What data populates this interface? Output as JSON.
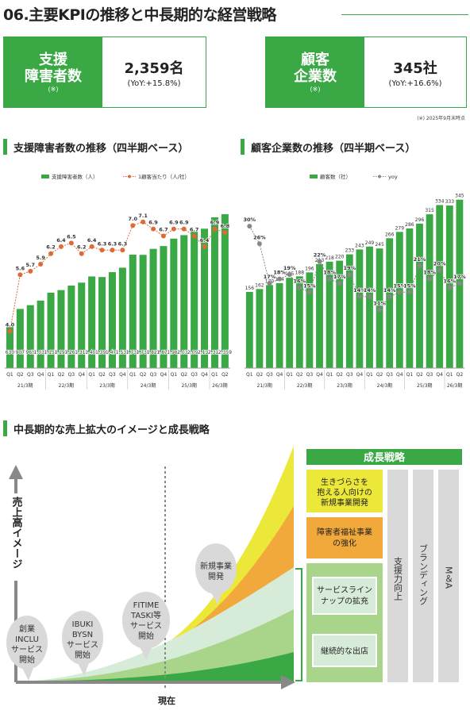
{
  "page_title": "06.主要KPIの推移と中長期的な経営戦略",
  "kpi": [
    {
      "label_line1": "支援",
      "label_line2": "障害者数",
      "note": "(※)",
      "value": "2,359名",
      "yoy": "(YoY:+15.8%)"
    },
    {
      "label_line1": "顧客",
      "label_line2": "企業数",
      "note": "(※)",
      "value": "345社",
      "yoy": "(YoY:+16.6%)"
    }
  ],
  "footnote": "(※) 2025年9月末時点",
  "section_left": "支援障害者数の推移（四半期ベース）",
  "section_right": "顧客企業数の推移（四半期ベース）",
  "section_bottom": "中長期的な売上拡大のイメージと成長戦略",
  "chart_data": [
    {
      "type": "bar",
      "categories": [
        "Q1",
        "Q2",
        "Q3",
        "Q4",
        "Q1",
        "Q2",
        "Q3",
        "Q4",
        "Q1",
        "Q2",
        "Q3",
        "Q4",
        "Q1",
        "Q2",
        "Q3",
        "Q4",
        "Q1",
        "Q2",
        "Q3",
        "Q4",
        "Q1",
        "Q2"
      ],
      "groups": [
        "21/3期",
        "22/3期",
        "23/3期",
        "24/3期",
        "25/3期",
        "26/3期"
      ],
      "bar_labels": [
        "630",
        "907",
        "965",
        "1,035",
        "1,156",
        "1,196",
        "1,265",
        "1,310",
        "1,405",
        "1,396",
        "1,471",
        "1,539",
        "1,739",
        "1,736",
        "1,828",
        "1,871",
        "1,985",
        "2,038",
        "2,097",
        "2,137",
        "2,312",
        "2,359"
      ],
      "series": [
        {
          "name": "支援障害者数（人）",
          "kind": "bar",
          "color": "#39a845",
          "values": [
            630,
            907,
            965,
            1035,
            1156,
            1196,
            1265,
            1310,
            1405,
            1396,
            1471,
            1539,
            1739,
            1736,
            1828,
            1871,
            1985,
            2038,
            2097,
            2137,
            2312,
            2359
          ]
        },
        {
          "name": "1顧客当たり（人/社）",
          "kind": "line",
          "color": "#e06a35",
          "values": [
            4.0,
            5.6,
            5.7,
            5.9,
            6.2,
            6.4,
            6.5,
            6.2,
            6.4,
            6.3,
            6.3,
            6.3,
            7.0,
            7.1,
            6.9,
            6.7,
            6.9,
            6.9,
            6.7,
            6.4,
            6.9,
            6.8
          ]
        }
      ],
      "ylim": [
        0,
        2700
      ]
    },
    {
      "type": "bar",
      "categories": [
        "Q1",
        "Q2",
        "Q3",
        "Q4",
        "Q1",
        "Q2",
        "Q3",
        "Q4",
        "Q1",
        "Q2",
        "Q3",
        "Q4",
        "Q1",
        "Q2",
        "Q3",
        "Q4",
        "Q1",
        "Q2",
        "Q3",
        "Q4",
        "Q1",
        "Q2"
      ],
      "groups": [
        "21/3期",
        "22/3期",
        "23/3期",
        "24/3期",
        "25/3期",
        "26/3期"
      ],
      "series": [
        {
          "name": "顧客数（社）",
          "kind": "bar",
          "color": "#39a845",
          "values": [
            156,
            162,
            170,
            174,
            185,
            188,
            196,
            213,
            218,
            220,
            233,
            243,
            249,
            245,
            266,
            279,
            286,
            296,
            315,
            334,
            333,
            345
          ]
        },
        {
          "name": "yoy",
          "kind": "line",
          "color": "#888888",
          "values": [
            30,
            26,
            17,
            18,
            19,
            16,
            15,
            22,
            18,
            17,
            19,
            14,
            14,
            11,
            14,
            15,
            15,
            21,
            18,
            20,
            16,
            17
          ]
        }
      ],
      "yoy_labels": [
        "30%",
        "26%",
        "17%",
        "18%",
        "19%",
        "16%",
        "15%",
        "22%",
        "18%",
        "17%",
        "19%",
        "14%",
        "14%",
        "11%",
        "14%",
        "15%",
        "15%",
        "21%",
        "18%",
        "20%",
        "16%",
        "17%"
      ],
      "ylim": [
        0,
        390
      ]
    }
  ],
  "strategy": {
    "header": "成長戦略",
    "yaxis": "売上高イメージ",
    "now_label": "現在",
    "bubbles": [
      {
        "l1": "創業",
        "l2": "INCLU",
        "l3": "サービス",
        "l4": "開始"
      },
      {
        "l1": "IBUKI",
        "l2": "BYSN",
        "l3": "サービス",
        "l4": "開始"
      },
      {
        "l1": "FITIME",
        "l2": "TASKI等",
        "l3": "サービス",
        "l4": "開始"
      },
      {
        "l1": "新規事業",
        "l2": "開発",
        "l3": "",
        "l4": ""
      }
    ],
    "box_yellow": [
      "生きづらさを",
      "抱える人向けの",
      "新規事業開発"
    ],
    "box_orange": [
      "障害者福祉事業",
      "の強化"
    ],
    "box_green1": [
      "サービスライン",
      "ナップの拡充"
    ],
    "box_green2": [
      "継続的な出店"
    ],
    "col1": "支援力向上",
    "col2": "ブランディング",
    "col3": "M＆A",
    "colors": {
      "green": "#39a845",
      "light_green": "#a8d58a",
      "pale": "#d6ecd9",
      "yellow": "#ece83a",
      "orange": "#f2a93b",
      "gray": "#d9d9d9"
    }
  }
}
